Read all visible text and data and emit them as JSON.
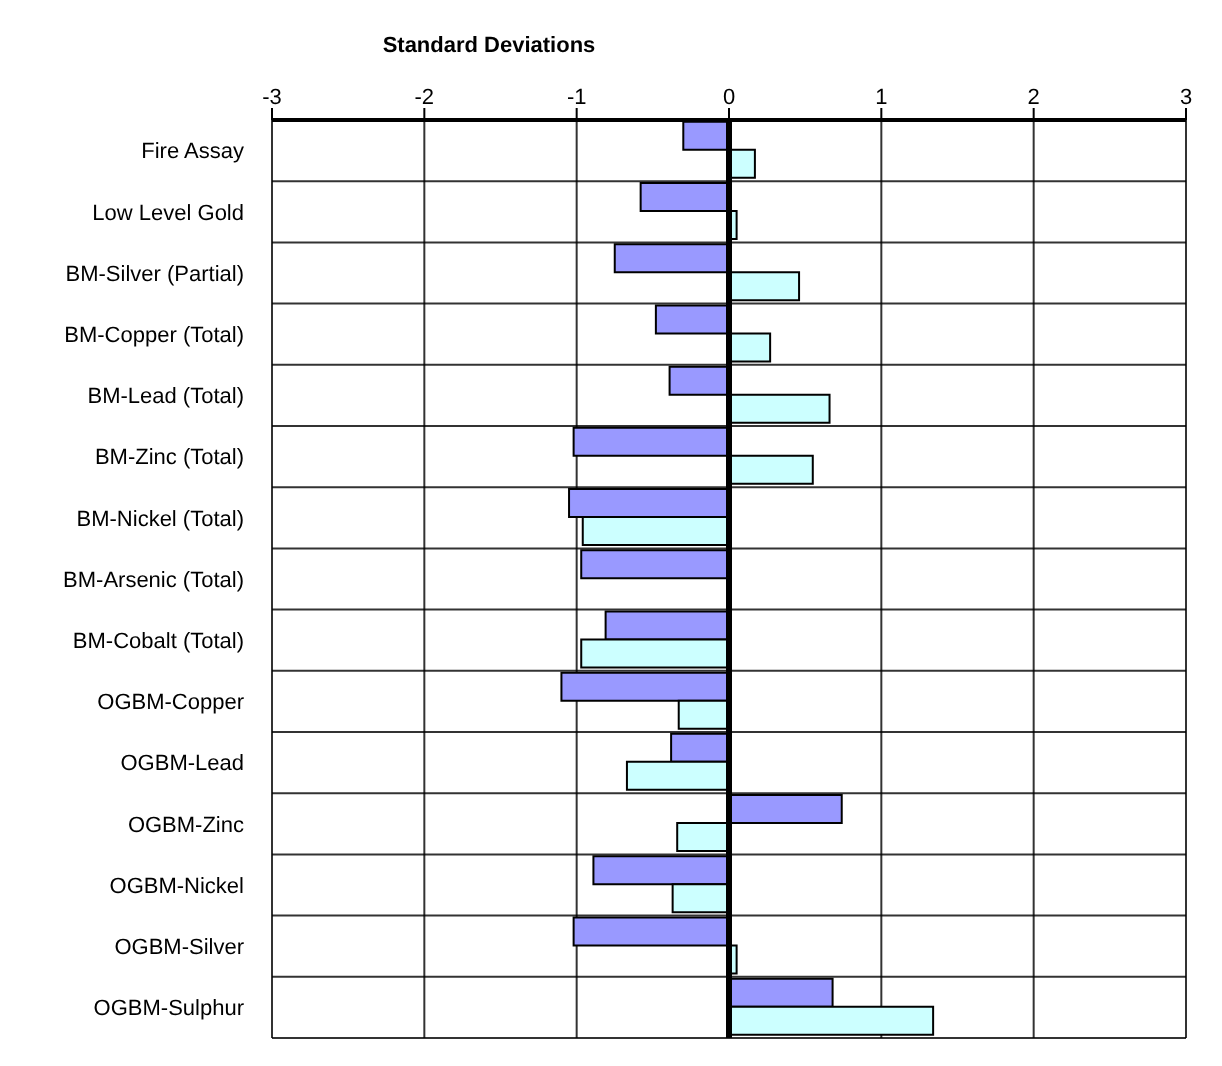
{
  "chart_data": {
    "type": "bar",
    "orientation": "horizontal",
    "xlabel": "Standard Deviations",
    "categories": [
      "Fire Assay",
      "Low Level Gold",
      "BM-Silver (Partial)",
      "BM-Copper (Total)",
      "BM-Lead (Total)",
      "BM-Zinc (Total)",
      "BM-Nickel (Total)",
      "BM-Arsenic (Total)",
      "BM-Cobalt (Total)",
      "OGBM-Copper",
      "OGBM-Lead",
      "OGBM-Zinc",
      "OGBM-Nickel",
      "OGBM-Silver",
      "OGBM-Sulphur"
    ],
    "series": [
      {
        "color": "#9999ff",
        "values": [
          -0.3,
          -0.58,
          -0.75,
          -0.48,
          -0.39,
          -1.02,
          -1.05,
          -0.97,
          -0.81,
          -1.1,
          -0.38,
          0.74,
          -0.89,
          -1.02,
          0.68
        ]
      },
      {
        "color": "#ccffff",
        "values": [
          0.17,
          0.05,
          0.46,
          0.27,
          0.66,
          0.55,
          -0.96,
          null,
          -0.97,
          -0.33,
          -0.67,
          -0.34,
          -0.37,
          0.05,
          1.34
        ]
      }
    ],
    "xlim": [
      -3,
      3
    ],
    "xticks": [
      -3,
      -2,
      -1,
      0,
      1,
      2,
      3
    ],
    "grid": true,
    "ref_lines": [
      {
        "axis": "x",
        "value": 0,
        "color": "#000000"
      }
    ]
  }
}
